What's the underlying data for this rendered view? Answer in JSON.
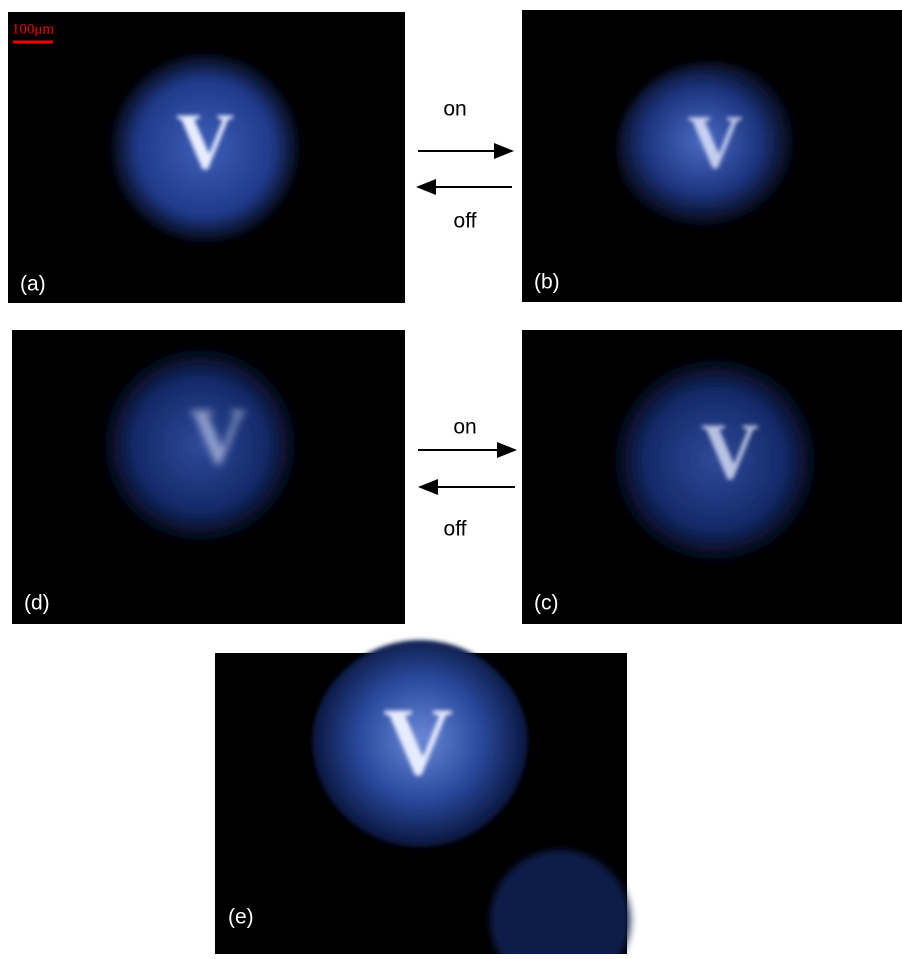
{
  "scale_bar": "100μm",
  "panels": [
    {
      "label": "(a)",
      "glyph": "V"
    },
    {
      "label": "(b)",
      "glyph": "V"
    },
    {
      "label": "(c)",
      "glyph": "V"
    },
    {
      "label": "(d)",
      "glyph": "V"
    },
    {
      "label": "(e)",
      "glyph": "V"
    }
  ],
  "arrows": [
    {
      "forward": "on",
      "backward": "off"
    },
    {
      "forward": "on",
      "backward": "off"
    }
  ]
}
